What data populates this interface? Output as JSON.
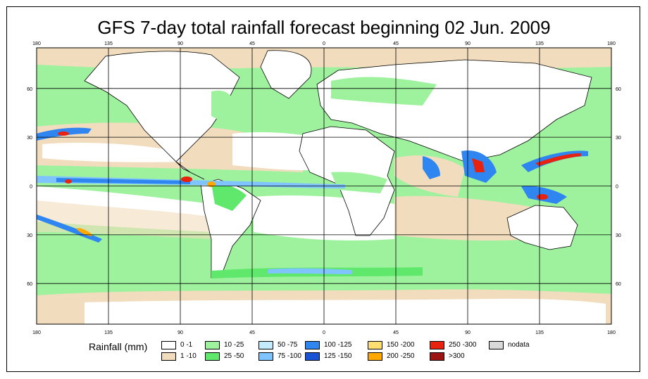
{
  "title": "GFS 7-day total rainfall forecast beginning 02 Jun. 2009",
  "legend": {
    "title": "Rainfall (mm)",
    "items": [
      {
        "label": "0 -1",
        "color": "#ffffff"
      },
      {
        "label": "1 -10",
        "color": "#f1dcbd"
      },
      {
        "label": "10 -25",
        "color": "#9ef29e"
      },
      {
        "label": "25 -50",
        "color": "#5fe86b"
      },
      {
        "label": "50 -75",
        "color": "#c3ecff"
      },
      {
        "label": "75 -100",
        "color": "#7fc4ff"
      },
      {
        "label": "100 -125",
        "color": "#2f86f0"
      },
      {
        "label": "125 -150",
        "color": "#1a54d6"
      },
      {
        "label": "150 -200",
        "color": "#ffdf6f"
      },
      {
        "label": "200 -250",
        "color": "#ffa800"
      },
      {
        "label": "250 -300",
        "color": "#e8220e"
      },
      {
        "label": ">300",
        "color": "#9c1414"
      },
      {
        "label": "nodata",
        "color": "#d9d9d9"
      }
    ]
  },
  "axes": {
    "lon_ticks": [
      "180",
      "135",
      "90",
      "45",
      "0",
      "45",
      "90",
      "135",
      "180"
    ],
    "lat_ticks": [
      "60",
      "30",
      "0",
      "30",
      "60"
    ]
  },
  "colors": {
    "grid": "#000000",
    "ocean_dry": "#f1dcbd",
    "land_dry": "#ffffff"
  }
}
